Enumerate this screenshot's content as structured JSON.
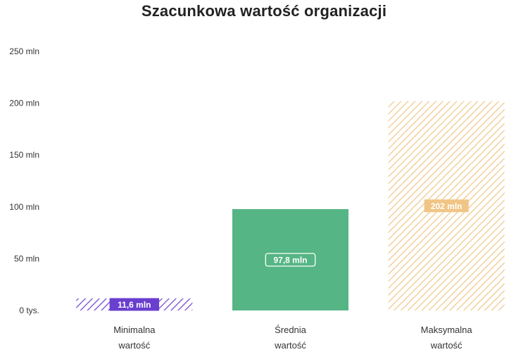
{
  "chart_data": {
    "type": "bar",
    "title": "Szacunkowa wartość organizacji",
    "xlabel": "",
    "ylabel": "",
    "ylim": [
      0,
      250
    ],
    "y_ticks": [
      {
        "value": 0,
        "label": "0 tys."
      },
      {
        "value": 50,
        "label": "50 mln"
      },
      {
        "value": 100,
        "label": "100 mln"
      },
      {
        "value": 150,
        "label": "150 mln"
      },
      {
        "value": 200,
        "label": "200 mln"
      },
      {
        "value": 250,
        "label": "250 mln"
      }
    ],
    "categories": [
      [
        "Minimalna",
        "wartość"
      ],
      [
        "Średnia",
        "wartość"
      ],
      [
        "Maksymalna",
        "wartość"
      ]
    ],
    "values": [
      11.6,
      97.8,
      202
    ],
    "data_labels": [
      "11,6 mln",
      "97,8 mln",
      "202 mln"
    ],
    "bar_styles": [
      "hatched",
      "solid",
      "hatched"
    ],
    "colors": [
      "#6a3fcf",
      "#55b584",
      "#f0c585"
    ],
    "grid": false,
    "legend": "none"
  }
}
